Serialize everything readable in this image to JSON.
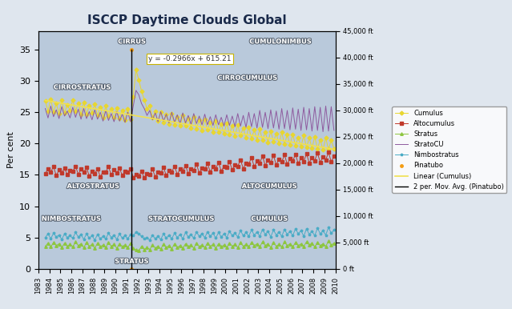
{
  "chart_data": {
    "type": "line",
    "title": "ISCCP Daytime Clouds Global",
    "y_label": "Per cent",
    "x": [
      1983.625,
      1983.875,
      1984.125,
      1984.375,
      1984.625,
      1984.875,
      1985.125,
      1985.375,
      1985.625,
      1985.875,
      1986.125,
      1986.375,
      1986.625,
      1986.875,
      1987.125,
      1987.375,
      1987.625,
      1987.875,
      1988.125,
      1988.375,
      1988.625,
      1988.875,
      1989.125,
      1989.375,
      1989.625,
      1989.875,
      1990.125,
      1990.375,
      1990.625,
      1990.875,
      1991.125,
      1991.375,
      1991.625,
      1991.875,
      1992.125,
      1992.375,
      1992.625,
      1992.875,
      1993.125,
      1993.375,
      1993.625,
      1993.875,
      1994.125,
      1994.375,
      1994.625,
      1994.875,
      1995.125,
      1995.375,
      1995.625,
      1995.875,
      1996.125,
      1996.375,
      1996.625,
      1996.875,
      1997.125,
      1997.375,
      1997.625,
      1997.875,
      1998.125,
      1998.375,
      1998.625,
      1998.875,
      1999.125,
      1999.375,
      1999.625,
      1999.875,
      2000.125,
      2000.375,
      2000.625,
      2000.875,
      2001.125,
      2001.375,
      2001.625,
      2001.875,
      2002.125,
      2002.375,
      2002.625,
      2002.875,
      2003.125,
      2003.375,
      2003.625,
      2003.875,
      2004.125,
      2004.375,
      2004.625,
      2004.875,
      2005.125,
      2005.375,
      2005.625,
      2005.875,
      2006.125,
      2006.375,
      2006.625,
      2006.875,
      2007.125,
      2007.375,
      2007.625,
      2007.875,
      2008.125,
      2008.375,
      2008.625,
      2008.875,
      2009.125,
      2009.375,
      2009.625,
      2009.875
    ],
    "xlim": [
      1983,
      2010
    ],
    "xticks": [
      1983,
      1984,
      1985,
      1986,
      1987,
      1988,
      1989,
      1990,
      1991,
      1992,
      1993,
      1994,
      1995,
      1996,
      1997,
      1998,
      1999,
      2000,
      2001,
      2002,
      2003,
      2004,
      2005,
      2006,
      2007,
      2008,
      2009,
      2010
    ],
    "ylim": [
      0,
      38
    ],
    "yticks": [
      0,
      5,
      10,
      15,
      20,
      25,
      30,
      35
    ],
    "y2lim": [
      0,
      45000
    ],
    "y2ticks": [
      {
        "value": 0,
        "label": "0 ft"
      },
      {
        "value": 5000,
        "label": "5,000 ft"
      },
      {
        "value": 10000,
        "label": "10,000 ft"
      },
      {
        "value": 15000,
        "label": "15,000 ft"
      },
      {
        "value": 20000,
        "label": "20,000 ft"
      },
      {
        "value": 25000,
        "label": "25,000 ft"
      },
      {
        "value": 30000,
        "label": "30,000 ft"
      },
      {
        "value": 35000,
        "label": "35,000 ft"
      },
      {
        "value": 40000,
        "label": "40,000 ft"
      },
      {
        "value": 45000,
        "label": "45,000 ft"
      }
    ],
    "grid": false,
    "legend": "center left",
    "equation": "y = -0.2966x + 615.21",
    "cloud_labels": [
      "CIRRUS",
      "CUMULONIMBUS",
      "CIRROCUMULUS",
      "CIRROSTRATUS",
      "ALTOSTRATUS",
      "ALTOCUMULUS",
      "NIMBOSTRATUS",
      "STRATOCUMULUS",
      "CUMULUS",
      "STRATUS"
    ],
    "series": [
      {
        "name": "Cumulus",
        "type": "line",
        "color": "#e8d630",
        "marker": "diamond",
        "line_style": "solid",
        "values": [
          26.8,
          25.2,
          27.1,
          25.0,
          26.4,
          24.8,
          26.9,
          24.9,
          26.2,
          25.3,
          27.0,
          25.1,
          26.5,
          24.6,
          26.6,
          24.7,
          26.0,
          24.9,
          26.3,
          24.5,
          25.8,
          24.2,
          26.0,
          24.4,
          25.5,
          24.1,
          25.7,
          24.0,
          25.3,
          23.8,
          25.5,
          23.9,
          27.5,
          31.8,
          30.2,
          28.4,
          27.0,
          25.6,
          26.0,
          24.2,
          25.1,
          23.6,
          25.0,
          23.4,
          24.6,
          23.1,
          24.8,
          23.0,
          24.3,
          22.8,
          24.5,
          22.9,
          24.0,
          22.5,
          24.3,
          22.4,
          23.8,
          22.1,
          23.9,
          22.2,
          23.4,
          21.8,
          23.6,
          21.9,
          23.1,
          21.6,
          23.3,
          21.5,
          22.9,
          21.2,
          23.0,
          21.3,
          22.5,
          20.9,
          22.6,
          20.8,
          22.2,
          20.6,
          22.3,
          20.5,
          21.9,
          20.2,
          22.0,
          20.3,
          21.6,
          20.0,
          21.8,
          19.9,
          21.4,
          19.8,
          21.5,
          19.7,
          21.0,
          19.5,
          21.3,
          19.4,
          20.9,
          19.3,
          21.1,
          19.2,
          20.6,
          19.0,
          20.9,
          19.1,
          20.5,
          19.2
        ]
      },
      {
        "name": "Altocumulus",
        "type": "line",
        "color": "#c0392b",
        "marker": "square",
        "line_style": "solid",
        "values": [
          15.2,
          16.0,
          15.5,
          16.3,
          14.9,
          15.8,
          15.3,
          16.1,
          15.0,
          15.7,
          15.6,
          16.4,
          15.1,
          15.9,
          15.4,
          16.2,
          14.8,
          15.6,
          15.2,
          16.0,
          14.7,
          15.5,
          15.5,
          16.3,
          15.0,
          15.8,
          15.3,
          16.1,
          14.9,
          15.6,
          15.4,
          16.0,
          14.6,
          15.1,
          14.8,
          15.6,
          14.5,
          15.2,
          15.0,
          15.9,
          14.7,
          15.5,
          15.3,
          16.2,
          14.9,
          15.7,
          15.5,
          16.4,
          15.1,
          15.9,
          15.6,
          16.5,
          15.2,
          16.0,
          15.7,
          16.7,
          15.3,
          16.1,
          15.9,
          16.8,
          15.5,
          16.3,
          16.0,
          17.0,
          15.6,
          16.4,
          16.2,
          17.1,
          15.8,
          16.6,
          16.4,
          17.4,
          16.0,
          16.9,
          16.7,
          17.8,
          16.3,
          17.2,
          16.9,
          18.0,
          16.5,
          17.4,
          17.0,
          18.1,
          16.6,
          17.5,
          17.1,
          18.2,
          16.7,
          17.6,
          17.2,
          18.3,
          16.8,
          17.7,
          17.1,
          18.4,
          16.9,
          17.8,
          17.3,
          18.5,
          17.0,
          17.9,
          17.4,
          18.6,
          17.1,
          18.0
        ]
      },
      {
        "name": "Stratus",
        "type": "line",
        "color": "#8dc63f",
        "marker": "triangle",
        "line_style": "solid",
        "values": [
          3.6,
          4.1,
          3.5,
          4.2,
          3.7,
          4.0,
          3.4,
          4.1,
          3.6,
          3.9,
          3.5,
          4.3,
          3.7,
          4.0,
          3.4,
          4.2,
          3.6,
          3.9,
          3.3,
          4.1,
          3.5,
          3.8,
          3.4,
          4.2,
          3.6,
          3.9,
          3.3,
          4.0,
          3.5,
          3.8,
          3.4,
          4.1,
          3.3,
          3.0,
          2.9,
          3.6,
          3.1,
          3.4,
          3.1,
          3.8,
          3.3,
          3.6,
          3.2,
          3.9,
          3.4,
          3.7,
          3.2,
          4.0,
          3.4,
          3.7,
          3.3,
          4.0,
          3.5,
          3.8,
          3.3,
          4.1,
          3.5,
          3.8,
          3.4,
          4.1,
          3.6,
          3.9,
          3.3,
          4.0,
          3.5,
          3.8,
          3.4,
          4.1,
          3.6,
          3.9,
          3.4,
          4.2,
          3.6,
          3.9,
          3.5,
          4.2,
          3.7,
          4.0,
          3.5,
          4.3,
          3.7,
          4.0,
          3.4,
          4.2,
          3.6,
          3.9,
          3.5,
          4.3,
          3.7,
          4.0,
          3.5,
          4.2,
          3.7,
          4.0,
          3.6,
          4.3,
          3.8,
          4.1,
          3.5,
          4.2,
          3.7,
          4.0,
          3.6,
          4.4,
          3.8,
          4.1
        ]
      },
      {
        "name": "StratoCU",
        "type": "line",
        "color": "#8e5a9e",
        "marker": "none",
        "line_style": "solid",
        "values": [
          25.6,
          24.1,
          26.0,
          24.3,
          25.4,
          24.0,
          25.9,
          24.4,
          25.2,
          24.1,
          25.8,
          24.2,
          25.5,
          23.9,
          25.6,
          24.0,
          25.1,
          23.8,
          25.4,
          23.9,
          25.0,
          23.6,
          25.3,
          23.7,
          24.8,
          23.5,
          25.1,
          23.6,
          24.7,
          23.4,
          25.0,
          23.5,
          26.0,
          28.5,
          27.8,
          26.4,
          25.6,
          24.5,
          25.3,
          23.8,
          24.9,
          23.5,
          25.1,
          23.6,
          24.7,
          23.3,
          25.0,
          23.4,
          24.6,
          23.2,
          24.9,
          23.3,
          24.5,
          23.1,
          24.8,
          23.2,
          24.4,
          23.0,
          24.7,
          23.0,
          24.3,
          22.9,
          24.6,
          23.0,
          24.2,
          22.8,
          24.6,
          22.9,
          24.4,
          22.7,
          24.8,
          22.8,
          24.5,
          22.6,
          25.0,
          22.7,
          24.8,
          22.5,
          25.3,
          22.6,
          25.0,
          22.4,
          25.4,
          22.5,
          25.2,
          22.3,
          25.6,
          22.4,
          25.3,
          22.2,
          25.7,
          22.3,
          25.5,
          22.1,
          25.8,
          22.2,
          25.6,
          22.0,
          25.9,
          22.1,
          25.8,
          21.9,
          26.0,
          22.0,
          25.9,
          22.1
        ]
      },
      {
        "name": "Nimbostratus",
        "type": "line",
        "color": "#4bacc6",
        "marker": "star",
        "line_style": "solid",
        "values": [
          5.0,
          5.6,
          4.8,
          5.7,
          5.1,
          5.4,
          4.7,
          5.6,
          5.0,
          5.3,
          4.9,
          5.8,
          5.1,
          5.5,
          4.7,
          5.6,
          4.9,
          5.3,
          4.6,
          5.5,
          4.8,
          5.2,
          4.8,
          5.7,
          5.0,
          5.4,
          4.7,
          5.6,
          4.9,
          5.3,
          4.8,
          5.5,
          5.3,
          5.9,
          5.6,
          5.2,
          4.8,
          5.0,
          4.6,
          5.4,
          4.8,
          5.2,
          4.7,
          5.6,
          4.9,
          5.4,
          4.8,
          5.7,
          5.0,
          5.5,
          4.8,
          5.8,
          5.1,
          5.5,
          4.9,
          5.9,
          5.2,
          5.6,
          5.0,
          5.9,
          5.2,
          5.7,
          4.9,
          5.8,
          5.1,
          5.6,
          5.0,
          6.0,
          5.3,
          5.7,
          5.1,
          6.1,
          5.3,
          5.8,
          5.2,
          6.2,
          5.4,
          5.9,
          5.2,
          6.3,
          5.5,
          6.0,
          5.1,
          6.2,
          5.4,
          5.9,
          5.2,
          6.3,
          5.5,
          6.0,
          5.3,
          6.4,
          5.6,
          6.1,
          5.2,
          6.4,
          5.5,
          6.0,
          5.3,
          6.5,
          5.6,
          6.1,
          5.4,
          6.6,
          5.7,
          6.2
        ]
      },
      {
        "name": "Pinatubo",
        "type": "scatter",
        "color": "#f39c12",
        "marker": "circle",
        "line_style": "none",
        "x": [
          1991.45,
          1991.45
        ],
        "values": [
          0,
          35
        ]
      },
      {
        "name": "Linear (Cumulus)",
        "type": "line",
        "color": "#f0e050",
        "marker": "none",
        "line_style": "solid",
        "x": [
          1983.625,
          2009.875
        ],
        "values": [
          26.9,
          19.1
        ]
      },
      {
        "name": "2 per. Mov. Avg. (Pinatubo)",
        "type": "line",
        "color": "#000000",
        "marker": "none",
        "line_style": "solid",
        "x": [
          1991.45,
          1991.45
        ],
        "values": [
          0,
          35
        ]
      }
    ]
  }
}
